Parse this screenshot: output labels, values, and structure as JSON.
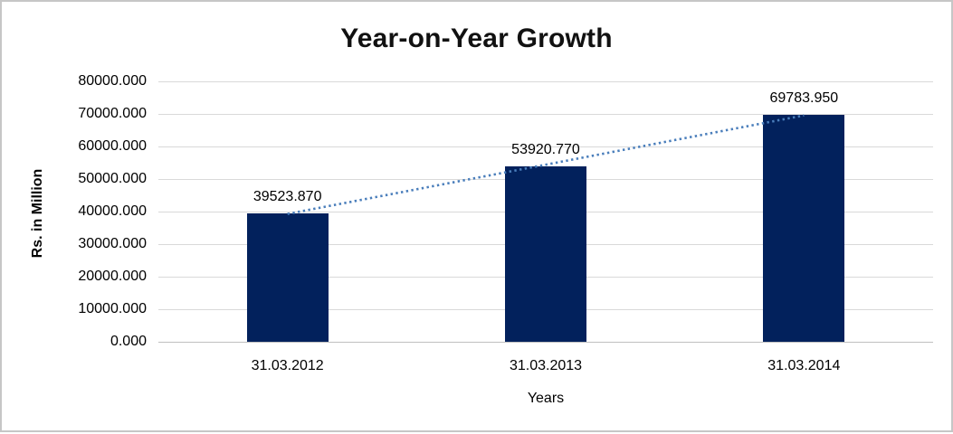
{
  "window": {
    "background": "#ffffff",
    "border_color": "#c6c6c6"
  },
  "chart_data": {
    "type": "bar",
    "title": "Year-on-Year Growth",
    "xlabel": "Years",
    "ylabel": "Rs. in Million",
    "categories": [
      "31.03.2012",
      "31.03.2013",
      "31.03.2014"
    ],
    "values": [
      39523.87,
      53920.77,
      69783.95
    ],
    "data_labels": [
      "39523.870",
      "53920.770",
      "69783.950"
    ],
    "y_ticks": [
      "80000.000",
      "70000.000",
      "60000.000",
      "50000.000",
      "40000.000",
      "30000.000",
      "20000.000",
      "10000.000",
      "0.000"
    ],
    "ylim": [
      0,
      80000
    ],
    "y_tick_step": 10000,
    "grid": true,
    "legend_position": "none",
    "bar_color": "#02215c",
    "gridline_color": "#d9d9d9",
    "axis_line_color": "#c0c0c0",
    "trendline": {
      "type": "linear",
      "style": "dotted",
      "color": "#4a7ebb"
    }
  }
}
